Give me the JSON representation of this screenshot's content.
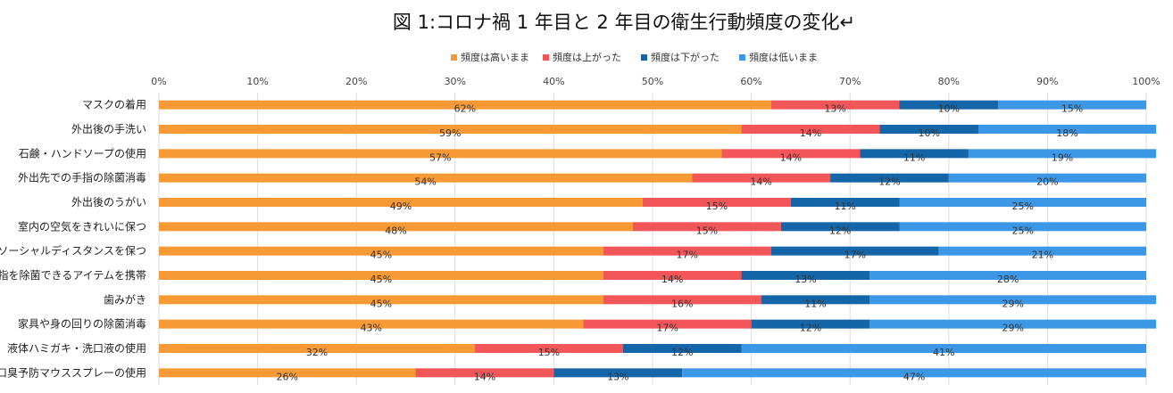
{
  "chart_data": {
    "type": "bar",
    "orientation": "horizontal",
    "stacked": "percent",
    "title": "図 1:コロナ禍 1 年目と 2 年目の衛生行動頻度の変化↵",
    "xlim": [
      0,
      100
    ],
    "x_ticks": [
      "0%",
      "10%",
      "20%",
      "30%",
      "40%",
      "50%",
      "60%",
      "70%",
      "80%",
      "90%",
      "100%"
    ],
    "legend_position": "top",
    "categories": [
      "マスクの着用",
      "外出後の手洗い",
      "石鹸・ハンドソープの使用",
      "外出先での手指の除菌消毒",
      "外出後のうがい",
      "室内の空気をきれいに保つ",
      "ソーシャルディスタンスを保つ",
      "手指を除菌できるアイテムを携帯",
      "歯みがき",
      "家具や身の回りの除菌消毒",
      "液体ハミガキ・洗口液の使用",
      "口臭予防マウススプレーの使用"
    ],
    "series": [
      {
        "name": "頻度は高いまま",
        "color": "#F79A35",
        "values": [
          62,
          59,
          57,
          54,
          49,
          48,
          45,
          45,
          45,
          43,
          32,
          26
        ],
        "labels": [
          "62%",
          "59%",
          "57%",
          "54%",
          "49%",
          "48%",
          "45%",
          "45%",
          "45%",
          "43%",
          "32%",
          "26%"
        ]
      },
      {
        "name": "頻度は上がった",
        "color": "#F25658",
        "values": [
          13,
          14,
          14,
          14,
          15,
          15,
          17,
          14,
          16,
          17,
          15,
          14
        ],
        "labels": [
          "13%",
          "14%",
          "14%",
          "14%",
          "15%",
          "15%",
          "17%",
          "14%",
          "16%",
          "17%",
          "15%",
          "14%"
        ]
      },
      {
        "name": "頻度は下がった",
        "color": "#1566A8",
        "values": [
          10,
          10,
          11,
          12,
          11,
          12,
          17,
          13,
          11,
          12,
          12,
          13
        ],
        "labels": [
          "10%",
          "10%",
          "11%",
          "12%",
          "11%",
          "12%",
          "17%",
          "13%",
          "11%",
          "12%",
          "12%",
          "13%"
        ]
      },
      {
        "name": "頻度は低いまま",
        "color": "#3C98E6",
        "values": [
          15,
          18,
          19,
          20,
          25,
          25,
          21,
          28,
          29,
          29,
          41,
          47
        ],
        "labels": [
          "15%",
          "18%",
          "19%",
          "20%",
          "25%",
          "25%",
          "21%",
          "28%",
          "29%",
          "29%",
          "41%",
          "47%"
        ]
      }
    ]
  }
}
